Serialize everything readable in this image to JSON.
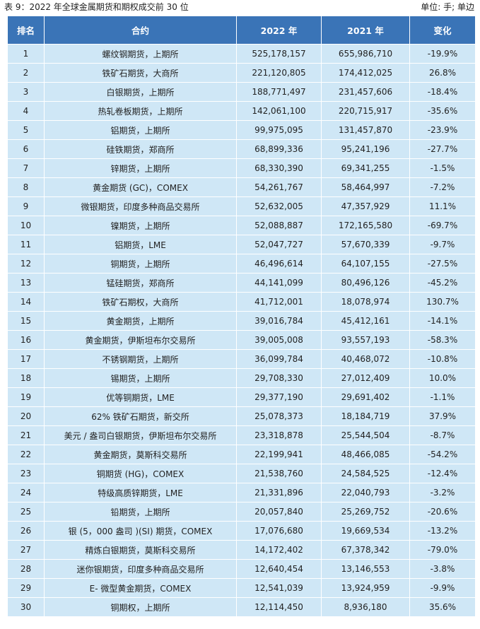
{
  "caption": {
    "title": "表 9：2022 年全球金属期货和期权成交前 30 位",
    "unit": "单位: 手; 单边"
  },
  "table": {
    "headers": [
      "排名",
      "合约",
      "2022 年",
      "2021 年",
      "变化"
    ],
    "rows": [
      [
        "1",
        "螺纹钢期货，上期所",
        "525,178,157",
        "655,986,710",
        "-19.9%"
      ],
      [
        "2",
        "铁矿石期货，大商所",
        "221,120,805",
        "174,412,025",
        "26.8%"
      ],
      [
        "3",
        "白银期货，上期所",
        "188,771,497",
        "231,457,606",
        "-18.4%"
      ],
      [
        "4",
        "热轧卷板期货，上期所",
        "142,061,100",
        "220,715,917",
        "-35.6%"
      ],
      [
        "5",
        "铝期货，上期所",
        "99,975,095",
        "131,457,870",
        "-23.9%"
      ],
      [
        "6",
        "硅铁期货，郑商所",
        "68,899,336",
        "95,241,196",
        "-27.7%"
      ],
      [
        "7",
        "锌期货，上期所",
        "68,330,390",
        "69,341,255",
        "-1.5%"
      ],
      [
        "8",
        "黄金期货 (GC)，COMEX",
        "54,261,767",
        "58,464,997",
        "-7.2%"
      ],
      [
        "9",
        "微银期货，印度多种商品交易所",
        "52,632,005",
        "47,357,929",
        "11.1%"
      ],
      [
        "10",
        "镍期货，上期所",
        "52,088,887",
        "172,165,580",
        "-69.7%"
      ],
      [
        "11",
        "铝期货，LME",
        "52,047,727",
        "57,670,339",
        "-9.7%"
      ],
      [
        "12",
        "铜期货，上期所",
        "46,496,614",
        "64,107,155",
        "-27.5%"
      ],
      [
        "13",
        "锰硅期货，郑商所",
        "44,141,099",
        "80,496,126",
        "-45.2%"
      ],
      [
        "14",
        "铁矿石期权，大商所",
        "41,712,001",
        "18,078,974",
        "130.7%"
      ],
      [
        "15",
        "黄金期货，上期所",
        "39,016,784",
        "45,412,161",
        "-14.1%"
      ],
      [
        "16",
        "黄金期货，伊斯坦布尔交易所",
        "39,005,008",
        "93,557,193",
        "-58.3%"
      ],
      [
        "17",
        "不锈钢期货，上期所",
        "36,099,784",
        "40,468,072",
        "-10.8%"
      ],
      [
        "18",
        "锡期货，上期所",
        "29,708,330",
        "27,012,409",
        "10.0%"
      ],
      [
        "19",
        "优等铜期货，LME",
        "29,377,190",
        "29,691,402",
        "-1.1%"
      ],
      [
        "20",
        "62% 铁矿石期货，新交所",
        "25,078,373",
        "18,184,719",
        "37.9%"
      ],
      [
        "21",
        "美元 / 盎司白银期货，伊斯坦布尔交易所",
        "23,318,878",
        "25,544,504",
        "-8.7%"
      ],
      [
        "22",
        "黄金期货，莫斯科交易所",
        "22,199,941",
        "48,466,085",
        "-54.2%"
      ],
      [
        "23",
        "铜期货 (HG)，COMEX",
        "21,538,760",
        "24,584,525",
        "-12.4%"
      ],
      [
        "24",
        "特级高质锌期货，LME",
        "21,331,896",
        "22,040,793",
        "-3.2%"
      ],
      [
        "25",
        "铅期货，上期所",
        "20,057,840",
        "25,269,752",
        "-20.6%"
      ],
      [
        "26",
        "银 (5，000 盎司 )(SI) 期货，COMEX",
        "17,076,680",
        "19,669,534",
        "-13.2%"
      ],
      [
        "27",
        "精炼白银期货，莫斯科交易所",
        "14,172,402",
        "67,378,342",
        "-79.0%"
      ],
      [
        "28",
        "迷你银期货，印度多种商品交易所",
        "12,640,454",
        "13,146,553",
        "-3.8%"
      ],
      [
        "29",
        "E- 微型黄金期货，COMEX",
        "12,541,039",
        "13,924,959",
        "-9.9%"
      ],
      [
        "30",
        "铜期权，上期所",
        "12,114,450",
        "8,936,180",
        "35.6%"
      ]
    ]
  },
  "colors": {
    "header_bg": "#3a74b7",
    "row_bg": "#cfe7f6"
  }
}
